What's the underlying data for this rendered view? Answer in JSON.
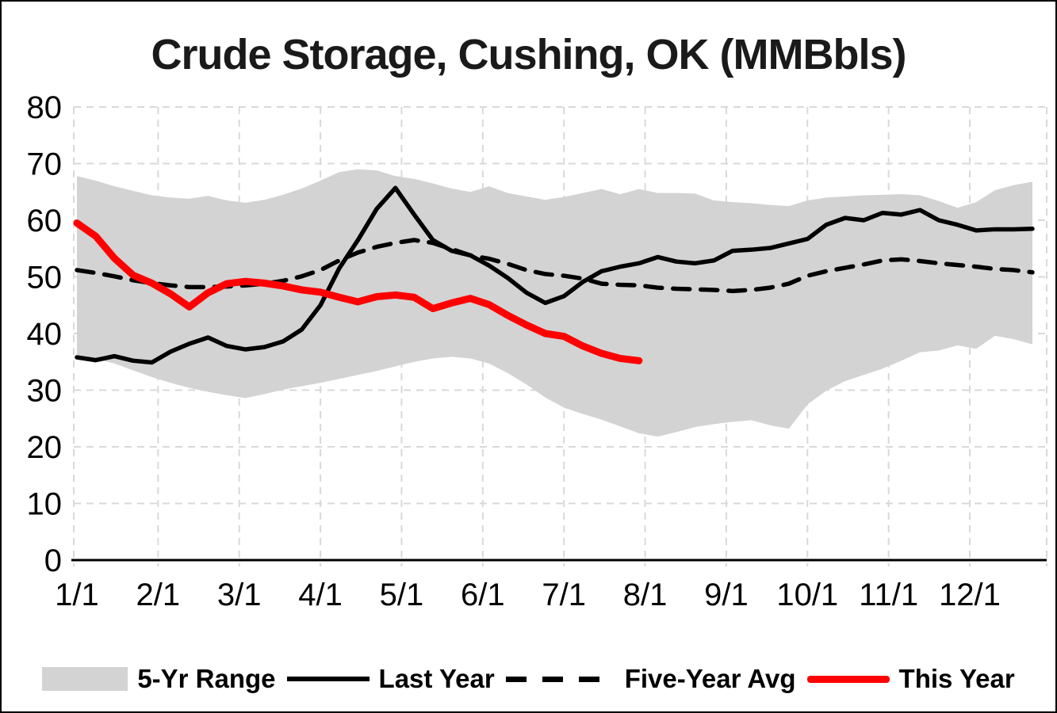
{
  "window": {
    "title": "Crude Storage, Cushing, OK (MMBbls)"
  },
  "colors": {
    "band": "#d3d3d3",
    "line_black": "#000000",
    "line_red": "#fe0000",
    "gridline": "#d9d9d9",
    "axis": "#000000"
  },
  "chart_data": {
    "type": "line",
    "title": "Crude Storage, Cushing, OK (MMBbls)",
    "ylabel": "",
    "xlabel": "",
    "ylim": [
      0,
      80
    ],
    "y_ticks": [
      0,
      10,
      20,
      30,
      40,
      50,
      60,
      70,
      80
    ],
    "x_tick_labels": [
      "1/1",
      "2/1",
      "3/1",
      "4/1",
      "5/1",
      "6/1",
      "7/1",
      "8/1",
      "9/1",
      "10/1",
      "11/1",
      "12/1"
    ],
    "grid": true,
    "legend_position": "bottom",
    "x_unit": "weekly points, Jan 1 through Dec 24",
    "series": [
      {
        "name": "5-Yr Range",
        "type": "band",
        "color": "#d3d3d3",
        "top": [
          67.8,
          67.0,
          66.0,
          65.2,
          64.4,
          64.0,
          63.8,
          64.3,
          63.5,
          63.1,
          63.6,
          64.5,
          65.6,
          67.0,
          68.5,
          69.0,
          68.8,
          67.8,
          67.3,
          66.5,
          65.6,
          65.0,
          66.0,
          64.8,
          64.2,
          63.6,
          64.1,
          64.8,
          65.5,
          64.6,
          65.5,
          64.8,
          64.8,
          64.7,
          63.5,
          63.2,
          63.0,
          62.7,
          62.5,
          63.5,
          64.0,
          64.2,
          64.4,
          64.5,
          64.6,
          64.4,
          63.4,
          62.2,
          63.2,
          65.3,
          66.2,
          66.8
        ],
        "bottom": [
          36.3,
          35.6,
          34.7,
          33.5,
          32.3,
          31.3,
          30.4,
          29.7,
          29.1,
          28.6,
          29.3,
          30.1,
          30.7,
          31.3,
          32.0,
          32.7,
          33.4,
          34.2,
          35.0,
          35.6,
          35.9,
          35.6,
          34.7,
          33.0,
          31.0,
          28.7,
          26.9,
          25.8,
          24.8,
          23.6,
          22.4,
          21.8,
          22.6,
          23.5,
          24.0,
          24.4,
          24.7,
          23.8,
          23.2,
          27.5,
          29.9,
          31.6,
          32.7,
          33.8,
          35.2,
          36.7,
          37.0,
          37.9,
          37.3,
          39.6,
          39.0,
          38.1
        ]
      },
      {
        "name": "Last Year",
        "type": "line",
        "style": "solid",
        "color": "#000000",
        "values": [
          35.8,
          35.3,
          36.0,
          35.2,
          34.9,
          36.8,
          38.2,
          39.3,
          37.8,
          37.2,
          37.6,
          38.6,
          40.7,
          45.0,
          51.5,
          56.5,
          62.0,
          65.7,
          61.0,
          56.5,
          54.6,
          53.8,
          52.0,
          49.8,
          47.2,
          45.4,
          46.6,
          49.1,
          51.0,
          51.8,
          52.4,
          53.5,
          52.7,
          52.4,
          52.9,
          54.6,
          54.8,
          55.1,
          55.9,
          56.7,
          59.2,
          60.4,
          60.0,
          61.3,
          61.0,
          61.8,
          60.0,
          59.2,
          58.2,
          58.4,
          58.4,
          58.5
        ]
      },
      {
        "name": "Five-Year Avg",
        "type": "line",
        "style": "dashed",
        "color": "#000000",
        "values": [
          51.2,
          50.7,
          50.1,
          49.4,
          48.9,
          48.5,
          48.2,
          48.2,
          48.3,
          48.5,
          48.8,
          49.3,
          50.1,
          51.2,
          52.9,
          54.3,
          55.3,
          56.0,
          56.5,
          56.0,
          54.9,
          53.8,
          53.2,
          52.3,
          51.2,
          50.5,
          50.2,
          49.7,
          48.8,
          48.6,
          48.5,
          48.1,
          47.9,
          47.8,
          47.7,
          47.5,
          47.7,
          48.1,
          48.8,
          50.2,
          51.0,
          51.6,
          52.2,
          52.9,
          53.1,
          52.8,
          52.4,
          52.1,
          51.8,
          51.4,
          51.2,
          50.8
        ]
      },
      {
        "name": "This Year",
        "type": "line",
        "style": "solid",
        "color": "#fe0000",
        "values": [
          59.5,
          57.2,
          53.3,
          50.3,
          48.9,
          47.0,
          44.7,
          47.2,
          48.8,
          49.2,
          48.9,
          48.4,
          47.7,
          47.3,
          46.4,
          45.6,
          46.5,
          46.8,
          46.4,
          44.4,
          45.4,
          46.2,
          45.1,
          43.2,
          41.5,
          40.0,
          39.5,
          37.8,
          36.5,
          35.6,
          35.2
        ]
      }
    ]
  },
  "legend": {
    "items": [
      {
        "label": "5-Yr Range",
        "marker": "band"
      },
      {
        "label": "Last Year",
        "marker": "solid-line"
      },
      {
        "label": "Five-Year Avg",
        "marker": "dashed-line"
      },
      {
        "label": "This Year",
        "marker": "thick-red-line"
      }
    ]
  }
}
